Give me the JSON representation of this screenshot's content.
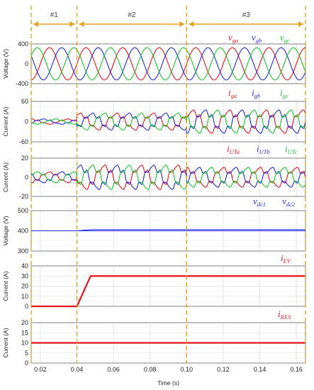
{
  "xaxis": {
    "label": "Time (s)",
    "ticks": [
      "0.02",
      "0.04",
      "0.06",
      "0.08",
      "0.10",
      "0.12",
      "0.14",
      "0.16"
    ],
    "tick_values": [
      0.02,
      0.04,
      0.06,
      0.08,
      0.1,
      0.12,
      0.14,
      0.16
    ],
    "range": [
      0.015,
      0.165
    ]
  },
  "phases": [
    {
      "label": "#1",
      "from": 0.015,
      "to": 0.04
    },
    {
      "label": "#2",
      "from": 0.04,
      "to": 0.1
    },
    {
      "label": "#3",
      "from": 0.1,
      "to": 0.165
    }
  ],
  "colors": {
    "a": "#e8141c",
    "b": "#1f2ce0",
    "c": "#19c62c",
    "phase": "#e8a020",
    "grid": "#d6d6d6"
  },
  "chart_data": [
    {
      "type": "line",
      "ylabel": "Voltage (V)",
      "ylim": [
        -400,
        400
      ],
      "yticks": [
        "400",
        "0",
        "-400"
      ],
      "ytick_values": [
        400,
        0,
        -400
      ],
      "grid": true,
      "series": [
        {
          "name": "v_ga",
          "base": "v",
          "sub": "ga",
          "color": "#e8141c",
          "amplitude": 325,
          "frequency_hz": 50,
          "phase_deg": 0
        },
        {
          "name": "v_gb",
          "base": "v",
          "sub": "gb",
          "color": "#1f2ce0",
          "amplitude": 325,
          "frequency_hz": 50,
          "phase_deg": -120
        },
        {
          "name": "v_gc",
          "base": "v",
          "sub": "gc",
          "color": "#19c62c",
          "amplitude": 325,
          "frequency_hz": 50,
          "phase_deg": 120
        }
      ]
    },
    {
      "type": "line",
      "ylabel": "Current (A)",
      "ylim": [
        -60,
        60
      ],
      "yticks": [
        "60",
        "0",
        "-60"
      ],
      "ytick_values": [
        60,
        0,
        -60
      ],
      "grid": true,
      "series": [
        {
          "name": "i_ga",
          "base": "i",
          "sub": "ga",
          "color": "#e8141c"
        },
        {
          "name": "i_gb",
          "base": "i",
          "sub": "gb",
          "color": "#1f2ce0"
        },
        {
          "name": "i_gc",
          "base": "i",
          "sub": "gc",
          "color": "#19c62c"
        }
      ],
      "segments": [
        {
          "from": 0.015,
          "to": 0.04,
          "amplitude": 7,
          "phase_deg": 180
        },
        {
          "from": 0.04,
          "to": 0.1,
          "amplitude": 22,
          "phase_deg": 60
        },
        {
          "from": 0.1,
          "to": 0.165,
          "amplitude": 30,
          "phase_deg": 30
        }
      ]
    },
    {
      "type": "line",
      "ylabel": "Current (A)",
      "ylim": [
        -20,
        20
      ],
      "yticks": [
        "20",
        "0",
        "-20"
      ],
      "ytick_values": [
        20,
        0,
        -20
      ],
      "grid": true,
      "series": [
        {
          "name": "i_UTa",
          "base": "i",
          "sub": "UTa",
          "color": "#e8141c"
        },
        {
          "name": "i_UTb",
          "base": "i",
          "sub": "UTb",
          "color": "#1f2ce0"
        },
        {
          "name": "i_UTc",
          "base": "i",
          "sub": "UTc",
          "color": "#19c62c"
        }
      ],
      "segments": [
        {
          "from": 0.015,
          "to": 0.04,
          "amplitude": 5,
          "phase_deg": 0
        },
        {
          "from": 0.04,
          "to": 0.1,
          "amplitude": 11,
          "phase_deg": 180
        },
        {
          "from": 0.1,
          "to": 0.165,
          "amplitude": 9,
          "phase_deg": 90
        }
      ]
    },
    {
      "type": "line",
      "ylabel": "Voltage (V)",
      "ylim": [
        300,
        500
      ],
      "yticks": [
        "500",
        "400",
        "300"
      ],
      "ytick_values": [
        500,
        400,
        300
      ],
      "grid": true,
      "series": [
        {
          "name": "v_dc1",
          "base": "v",
          "sub": "dc1",
          "color": "#1f2ce0",
          "x": [
            0.015,
            0.04,
            0.045,
            0.05,
            0.1,
            0.165
          ],
          "y": [
            400,
            400,
            404,
            406,
            406,
            406
          ]
        },
        {
          "name": "v_dc2",
          "base": "v",
          "sub": "dc2",
          "color": "#1f2ce0",
          "x": [
            0.015,
            0.165
          ],
          "y": [
            400,
            400
          ]
        }
      ]
    },
    {
      "type": "line",
      "ylabel": "Current (A)",
      "ylim": [
        0,
        40
      ],
      "yticks": [
        "40",
        "30",
        "20",
        "10",
        "0"
      ],
      "ytick_values": [
        40,
        30,
        20,
        10,
        0
      ],
      "grid": true,
      "series": [
        {
          "name": "i_EV",
          "base": "i",
          "sub": "EV",
          "color": "#e8141c",
          "x": [
            0.015,
            0.04,
            0.0475,
            0.165
          ],
          "y": [
            0,
            0,
            30,
            30
          ]
        }
      ]
    },
    {
      "type": "line",
      "ylabel": "Current (A)",
      "ylim": [
        0,
        20
      ],
      "yticks": [
        "20",
        "15",
        "10",
        "5",
        "0"
      ],
      "ytick_values": [
        20,
        15,
        10,
        5,
        0
      ],
      "grid": true,
      "series": [
        {
          "name": "i_RES",
          "base": "i",
          "sub": "RES",
          "color": "#e8141c",
          "x": [
            0.015,
            0.165
          ],
          "y": [
            10,
            10
          ]
        }
      ]
    }
  ]
}
